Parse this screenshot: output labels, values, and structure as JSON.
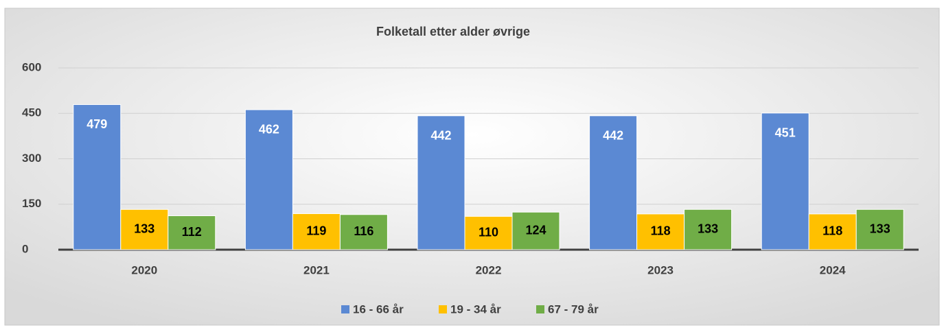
{
  "chart_data": {
    "type": "bar",
    "title": "Folketall etter alder øvrige",
    "categories": [
      "2020",
      "2021",
      "2022",
      "2023",
      "2024"
    ],
    "series": [
      {
        "name": "16 - 66 år",
        "color": "#5b89d3",
        "values": [
          479,
          462,
          442,
          442,
          451
        ]
      },
      {
        "name": "19 - 34 år",
        "color": "#ffc000",
        "values": [
          133,
          119,
          110,
          118,
          118
        ]
      },
      {
        "name": "67 - 79 år",
        "color": "#70ad47",
        "values": [
          112,
          116,
          124,
          133,
          133
        ]
      }
    ],
    "ylim": [
      0,
      600
    ],
    "yticks": [
      0,
      150,
      300,
      450,
      600
    ],
    "grid": true,
    "legend": "bottom"
  }
}
